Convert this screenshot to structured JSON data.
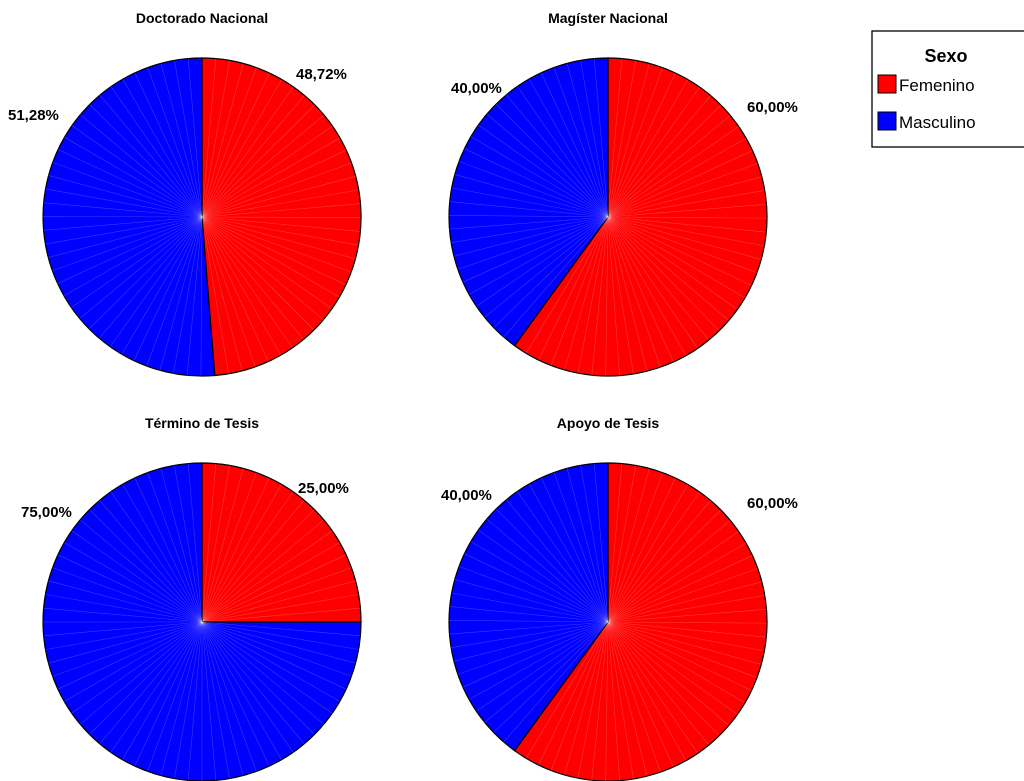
{
  "chart_data": [
    {
      "type": "pie",
      "title": "Doctorado Nacional",
      "slices": [
        {
          "category": "Femenino",
          "value": 48.72,
          "label": "48,72%"
        },
        {
          "category": "Masculino",
          "value": 51.28,
          "label": "51,28%"
        }
      ]
    },
    {
      "type": "pie",
      "title": "Magíster Nacional",
      "slices": [
        {
          "category": "Femenino",
          "value": 60.0,
          "label": "60,00%"
        },
        {
          "category": "Masculino",
          "value": 40.0,
          "label": "40,00%"
        }
      ]
    },
    {
      "type": "pie",
      "title": "Término de Tesis",
      "slices": [
        {
          "category": "Femenino",
          "value": 25.0,
          "label": "25,00%"
        },
        {
          "category": "Masculino",
          "value": 75.0,
          "label": "75,00%"
        }
      ]
    },
    {
      "type": "pie",
      "title": "Apoyo de Tesis",
      "slices": [
        {
          "category": "Femenino",
          "value": 60.0,
          "label": "60,00%"
        },
        {
          "category": "Masculino",
          "value": 40.0,
          "label": "40,00%"
        }
      ]
    }
  ],
  "legend": {
    "title": "Sexo",
    "placement": "top-right",
    "items": [
      {
        "label": "Femenino",
        "color": "#ff0000"
      },
      {
        "label": "Masculino",
        "color": "#0000ff"
      }
    ]
  }
}
